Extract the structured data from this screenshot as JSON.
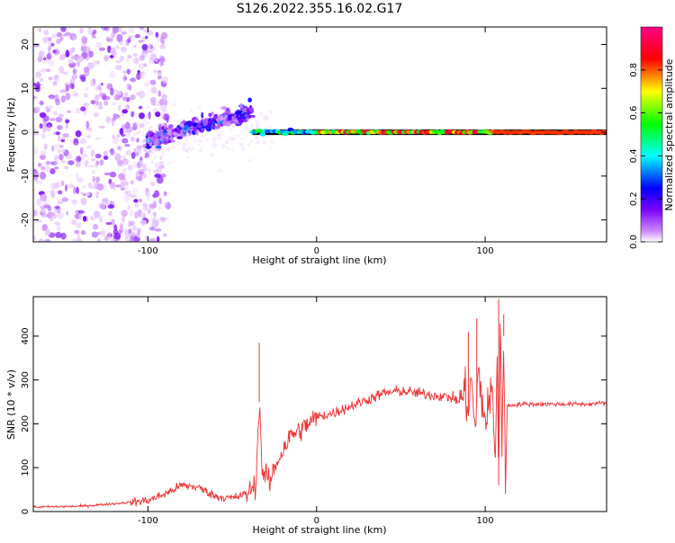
{
  "title": "S126.2022.355.16.02.G17",
  "chart_data": [
    {
      "type": "heatmap",
      "xlabel": "Height of straight line (km)",
      "ylabel": "Frequency (Hz)",
      "xlim": [
        -168,
        172
      ],
      "ylim": [
        -25,
        24
      ],
      "x_ticks": [
        -100,
        0,
        100
      ],
      "y_ticks": [
        -20,
        -10,
        0,
        10,
        20
      ],
      "grid": false,
      "colorbar": {
        "label": "Normalized spectral amplitude",
        "range": [
          0,
          1
        ],
        "ticks": [
          0.0,
          0.2,
          0.4,
          0.6,
          0.8
        ],
        "colormap": [
          "#ffffff",
          "#cc88ff",
          "#7a00ff",
          "#0000ff",
          "#00ffff",
          "#00ff00",
          "#ffff00",
          "#ff0000",
          "#ff0088"
        ]
      },
      "features": {
        "noise_region_x": [
          -168,
          -100
        ],
        "scatter_band_x": [
          -100,
          -38
        ],
        "scatter_band_center_hz": [
          [
            -100,
            -2
          ],
          [
            -38,
            5
          ]
        ],
        "trace_x": [
          -38,
          172
        ],
        "trace_hz": 0,
        "strong_signal_start_km": 0
      }
    },
    {
      "type": "line",
      "xlabel": "Height of straight line (km)",
      "ylabel": "SNR (10 * v/v)",
      "xlim": [
        -168,
        172
      ],
      "ylim": [
        0,
        490
      ],
      "x_ticks": [
        -100,
        0,
        100
      ],
      "y_ticks": [
        0,
        100,
        200,
        300,
        400
      ],
      "grid": false,
      "color": "#ee3333",
      "series": [
        {
          "x": [
            -168,
            -140,
            -120,
            -100,
            -90,
            -80,
            -70,
            -60,
            -50,
            -42,
            -36,
            -34,
            -32,
            -30,
            -28,
            -25,
            -20,
            -15,
            -10,
            -5,
            0,
            10,
            20,
            30,
            40,
            50,
            60,
            70,
            80,
            85,
            88,
            90,
            92,
            94,
            96,
            100,
            104,
            106,
            107,
            108,
            109,
            110,
            111,
            112,
            113,
            120,
            140,
            160,
            172
          ],
          "y": [
            10,
            12,
            18,
            25,
            40,
            60,
            55,
            35,
            30,
            40,
            60,
            250,
            80,
            90,
            60,
            100,
            140,
            175,
            185,
            200,
            215,
            225,
            240,
            255,
            270,
            275,
            270,
            265,
            260,
            250,
            275,
            230,
            300,
            180,
            320,
            200,
            280,
            120,
            380,
            60,
            470,
            100,
            400,
            80,
            240,
            245,
            245,
            245,
            248
          ]
        }
      ],
      "spikes": [
        {
          "x": -34,
          "y": 385
        },
        {
          "x": 90,
          "y": 410
        },
        {
          "x": 95,
          "y": 440
        },
        {
          "x": 108,
          "y": 485
        },
        {
          "x": 111,
          "y": 450
        }
      ]
    }
  ]
}
